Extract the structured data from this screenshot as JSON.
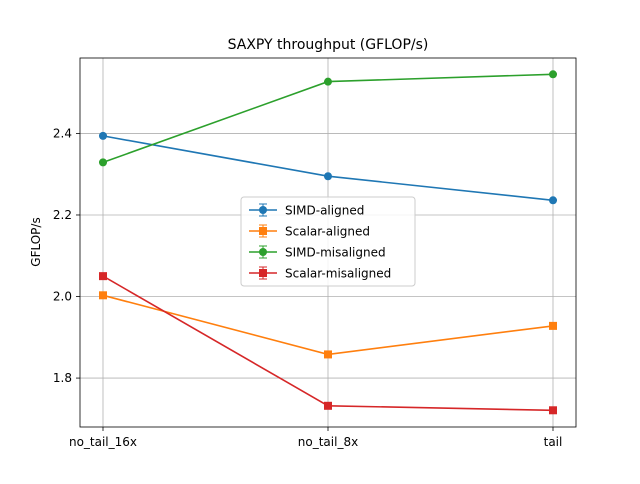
{
  "chart_data": {
    "type": "line",
    "title": "SAXPY throughput (GFLOP/s)",
    "xlabel": "",
    "ylabel": "GFLOP/s",
    "categories": [
      "no_tail_16x",
      "no_tail_8x",
      "tail"
    ],
    "ylim": [
      1.68,
      2.585
    ],
    "yticks": [
      1.8,
      2.0,
      2.2,
      2.4
    ],
    "ytick_labels": [
      "1.8",
      "2.0",
      "2.2",
      "2.4"
    ],
    "grid": true,
    "legend_position": "center",
    "series": [
      {
        "name": "SIMD-aligned",
        "values": [
          2.394,
          2.295,
          2.236
        ],
        "color": "#1f77b4",
        "marker": "circle"
      },
      {
        "name": "Scalar-aligned",
        "values": [
          2.003,
          1.858,
          1.928
        ],
        "color": "#ff7f0e",
        "marker": "square"
      },
      {
        "name": "SIMD-misaligned",
        "values": [
          2.329,
          2.527,
          2.545
        ],
        "color": "#2ca02c",
        "marker": "circle"
      },
      {
        "name": "Scalar-misaligned",
        "values": [
          2.05,
          1.732,
          1.721
        ],
        "color": "#d62728",
        "marker": "square"
      }
    ]
  }
}
